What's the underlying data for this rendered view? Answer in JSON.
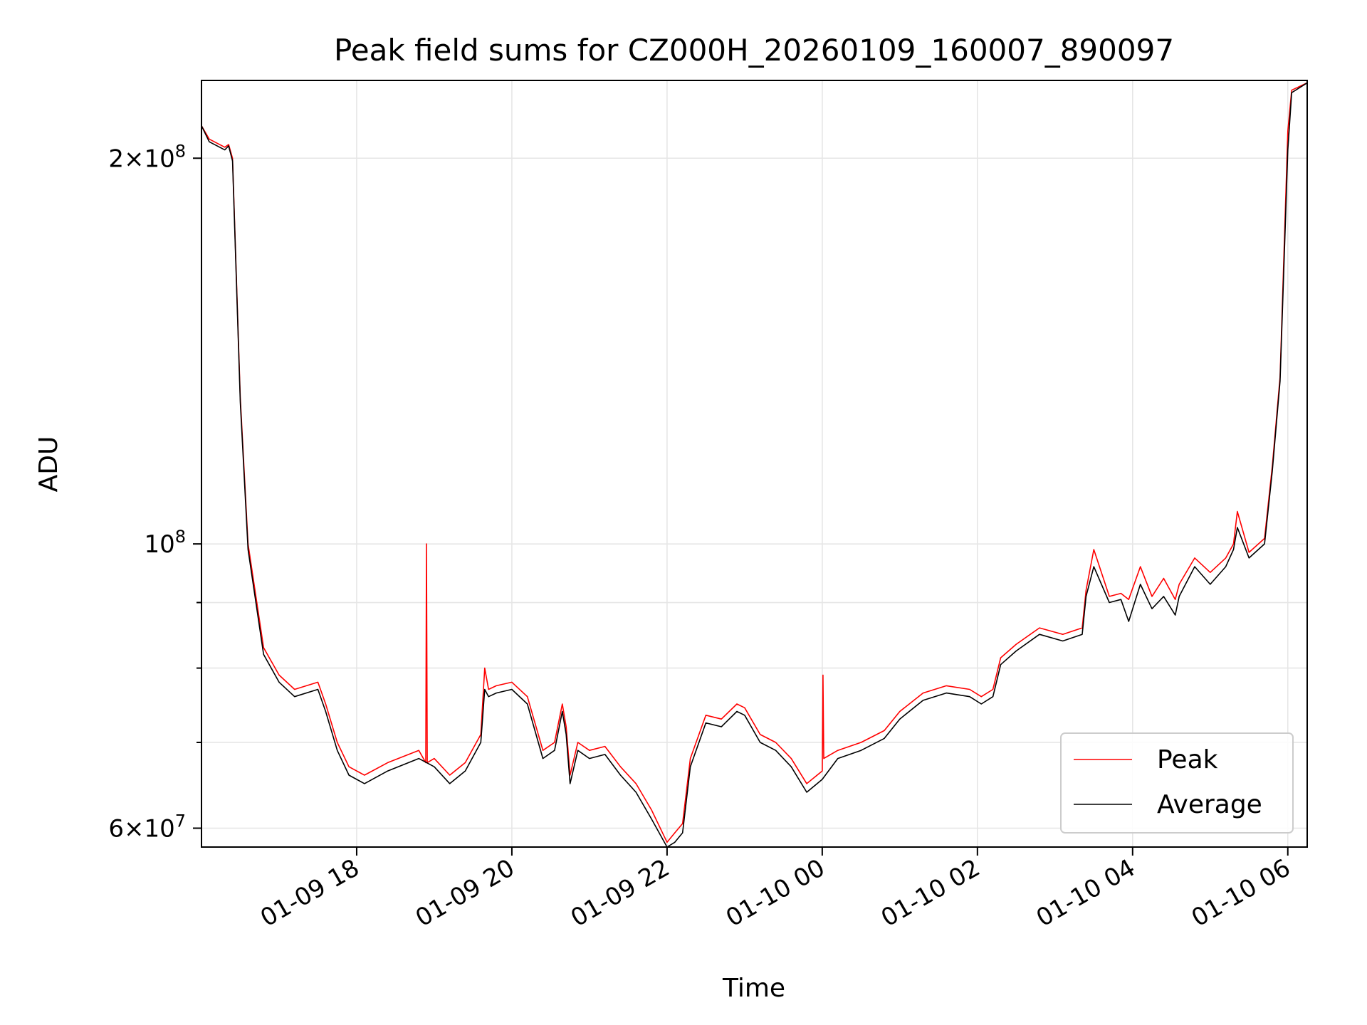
{
  "chart_data": {
    "type": "line",
    "title": "Peak field sums for CZ000H_20260109_160007_890097",
    "xlabel": "Time",
    "ylabel": "ADU",
    "yscale": "log",
    "ylim": [
      58000000,
      230000000
    ],
    "xlim_hours": [
      0.0,
      14.25
    ],
    "x_unit": "hours since 01-09 16:00",
    "grid": true,
    "legend_position": "lower-right",
    "colors": {
      "Peak": "#ff0000",
      "Average": "#000000"
    },
    "x_ticks": [
      {
        "hours": 2,
        "label": "01-09 18"
      },
      {
        "hours": 4,
        "label": "01-09 20"
      },
      {
        "hours": 6,
        "label": "01-09 22"
      },
      {
        "hours": 8,
        "label": "01-10 00"
      },
      {
        "hours": 10,
        "label": "01-10 02"
      },
      {
        "hours": 12,
        "label": "01-10 04"
      },
      {
        "hours": 14,
        "label": "01-10 06"
      }
    ],
    "y_major_ticks": [
      {
        "value": 60000000,
        "label_base": "6×10",
        "label_exp": "7"
      },
      {
        "value": 100000000,
        "label_base": "10",
        "label_exp": "8"
      },
      {
        "value": 200000000,
        "label_base": "2×10",
        "label_exp": "8"
      }
    ],
    "y_minor_ticks": [
      70000000,
      80000000,
      90000000
    ],
    "series": [
      {
        "name": "Peak",
        "x": [
          0.0,
          0.1,
          0.3,
          0.35,
          0.4,
          0.5,
          0.6,
          0.8,
          1.0,
          1.2,
          1.5,
          1.6,
          1.75,
          1.9,
          2.1,
          2.4,
          2.8,
          2.89,
          2.9,
          2.91,
          3.0,
          3.2,
          3.4,
          3.6,
          3.65,
          3.7,
          3.8,
          4.0,
          4.2,
          4.4,
          4.55,
          4.65,
          4.7,
          4.75,
          4.85,
          5.0,
          5.2,
          5.4,
          5.6,
          5.8,
          6.0,
          6.1,
          6.2,
          6.3,
          6.5,
          6.7,
          6.9,
          7.0,
          7.2,
          7.4,
          7.6,
          7.8,
          8.0,
          8.01,
          8.02,
          8.2,
          8.5,
          8.8,
          9.0,
          9.3,
          9.6,
          9.9,
          10.05,
          10.2,
          10.3,
          10.5,
          10.8,
          11.1,
          11.35,
          11.4,
          11.5,
          11.7,
          11.85,
          11.95,
          12.1,
          12.25,
          12.4,
          12.55,
          12.6,
          12.8,
          13.0,
          13.2,
          13.3,
          13.35,
          13.5,
          13.7,
          13.8,
          13.9,
          14.0,
          14.05,
          14.25
        ],
        "values": [
          212000000,
          207000000,
          204000000,
          205000000,
          200000000,
          130000000,
          100000000,
          83000000,
          79000000,
          77000000,
          78000000,
          75000000,
          70000000,
          67000000,
          66000000,
          67500000,
          69000000,
          67500000,
          100000000,
          67500000,
          68000000,
          66000000,
          67500000,
          71000000,
          80000000,
          77000000,
          77500000,
          78000000,
          76000000,
          69000000,
          70000000,
          75000000,
          72000000,
          66000000,
          70000000,
          69000000,
          69500000,
          67000000,
          65000000,
          62000000,
          58500000,
          59500000,
          60500000,
          68000000,
          73500000,
          73000000,
          75000000,
          74500000,
          71000000,
          70000000,
          68000000,
          65000000,
          66500000,
          79000000,
          68000000,
          69000000,
          70000000,
          71500000,
          74000000,
          76500000,
          77500000,
          77000000,
          76000000,
          77000000,
          81500000,
          83500000,
          86000000,
          85000000,
          86000000,
          92000000,
          99000000,
          91000000,
          91500000,
          90500000,
          96000000,
          91000000,
          94000000,
          90500000,
          93000000,
          97500000,
          95000000,
          97500000,
          100000000,
          106000000,
          98500000,
          101000000,
          115000000,
          135000000,
          210000000,
          226000000,
          229000000
        ]
      },
      {
        "name": "Average",
        "x": [
          0.0,
          0.1,
          0.3,
          0.35,
          0.4,
          0.5,
          0.6,
          0.8,
          1.0,
          1.2,
          1.5,
          1.6,
          1.75,
          1.9,
          2.1,
          2.4,
          2.8,
          3.0,
          3.2,
          3.4,
          3.6,
          3.65,
          3.7,
          3.8,
          4.0,
          4.2,
          4.4,
          4.55,
          4.65,
          4.7,
          4.75,
          4.85,
          5.0,
          5.2,
          5.4,
          5.6,
          5.8,
          6.0,
          6.1,
          6.2,
          6.3,
          6.5,
          6.7,
          6.9,
          7.0,
          7.2,
          7.4,
          7.6,
          7.8,
          8.0,
          8.2,
          8.5,
          8.8,
          9.0,
          9.3,
          9.6,
          9.9,
          10.05,
          10.2,
          10.3,
          10.5,
          10.8,
          11.1,
          11.35,
          11.4,
          11.5,
          11.7,
          11.85,
          11.95,
          12.1,
          12.25,
          12.4,
          12.55,
          12.6,
          12.8,
          13.0,
          13.2,
          13.3,
          13.35,
          13.5,
          13.7,
          13.8,
          13.9,
          14.0,
          14.05,
          14.25
        ],
        "values": [
          212000000,
          206000000,
          203000000,
          204500000,
          199000000,
          129000000,
          99000000,
          82000000,
          78000000,
          76000000,
          77000000,
          74000000,
          69000000,
          66000000,
          65000000,
          66500000,
          68000000,
          67000000,
          65000000,
          66500000,
          70000000,
          77000000,
          76000000,
          76500000,
          77000000,
          75000000,
          68000000,
          69000000,
          74000000,
          71000000,
          65000000,
          69000000,
          68000000,
          68500000,
          66000000,
          64000000,
          61000000,
          58000000,
          58500000,
          59500000,
          67000000,
          72500000,
          72000000,
          74000000,
          73500000,
          70000000,
          69000000,
          67000000,
          64000000,
          65500000,
          68000000,
          69000000,
          70500000,
          73000000,
          75500000,
          76500000,
          76000000,
          75000000,
          76000000,
          80500000,
          82500000,
          85000000,
          84000000,
          85000000,
          91000000,
          96000000,
          90000000,
          90500000,
          87000000,
          93000000,
          89000000,
          91000000,
          88000000,
          91000000,
          96000000,
          93000000,
          96000000,
          99000000,
          103000000,
          97500000,
          100000000,
          114000000,
          134000000,
          203000000,
          225000000,
          229000000
        ]
      }
    ]
  }
}
